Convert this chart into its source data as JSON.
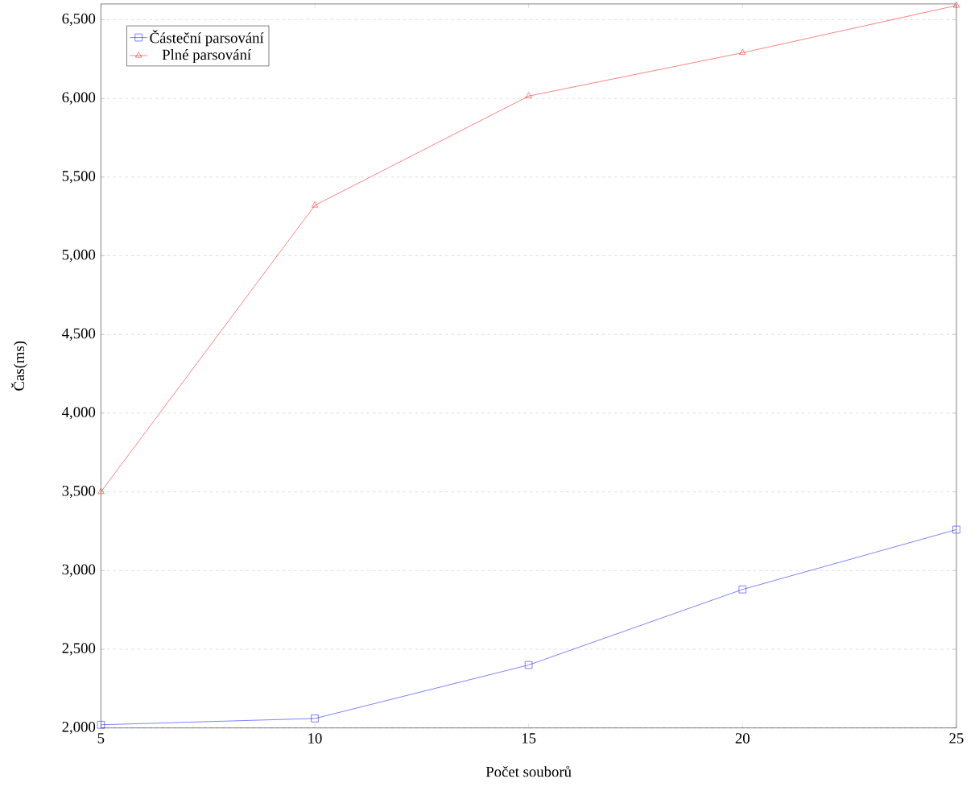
{
  "chart_data": {
    "type": "line",
    "xlabel": "Počet souborů",
    "ylabel": "Čas(ms)",
    "x": [
      5,
      10,
      15,
      20,
      25
    ],
    "series": [
      {
        "name": "Částeční parsování",
        "color": "#0000ff",
        "marker": "square",
        "values": [
          2020,
          2060,
          2400,
          2880,
          3260
        ]
      },
      {
        "name": "Plné parsování",
        "color": "#ff0000",
        "marker": "triangle",
        "values": [
          3500,
          5320,
          6015,
          6290,
          6590
        ]
      }
    ],
    "xlim": [
      5,
      25
    ],
    "ylim": [
      2000,
      6600
    ],
    "xticks": [
      5,
      10,
      15,
      20,
      25
    ],
    "yticks": [
      {
        "value": 2000,
        "label": "2,000"
      },
      {
        "value": 2500,
        "label": "2,500"
      },
      {
        "value": 3000,
        "label": "3,000"
      },
      {
        "value": 3500,
        "label": "3,500"
      },
      {
        "value": 4000,
        "label": "4,000"
      },
      {
        "value": 4500,
        "label": "4,500"
      },
      {
        "value": 5000,
        "label": "5,000"
      },
      {
        "value": 5500,
        "label": "5,500"
      },
      {
        "value": 6000,
        "label": "6,000"
      },
      {
        "value": 6500,
        "label": "6,500"
      }
    ],
    "grid": "y",
    "legend": "top left",
    "line_style": "solid"
  }
}
